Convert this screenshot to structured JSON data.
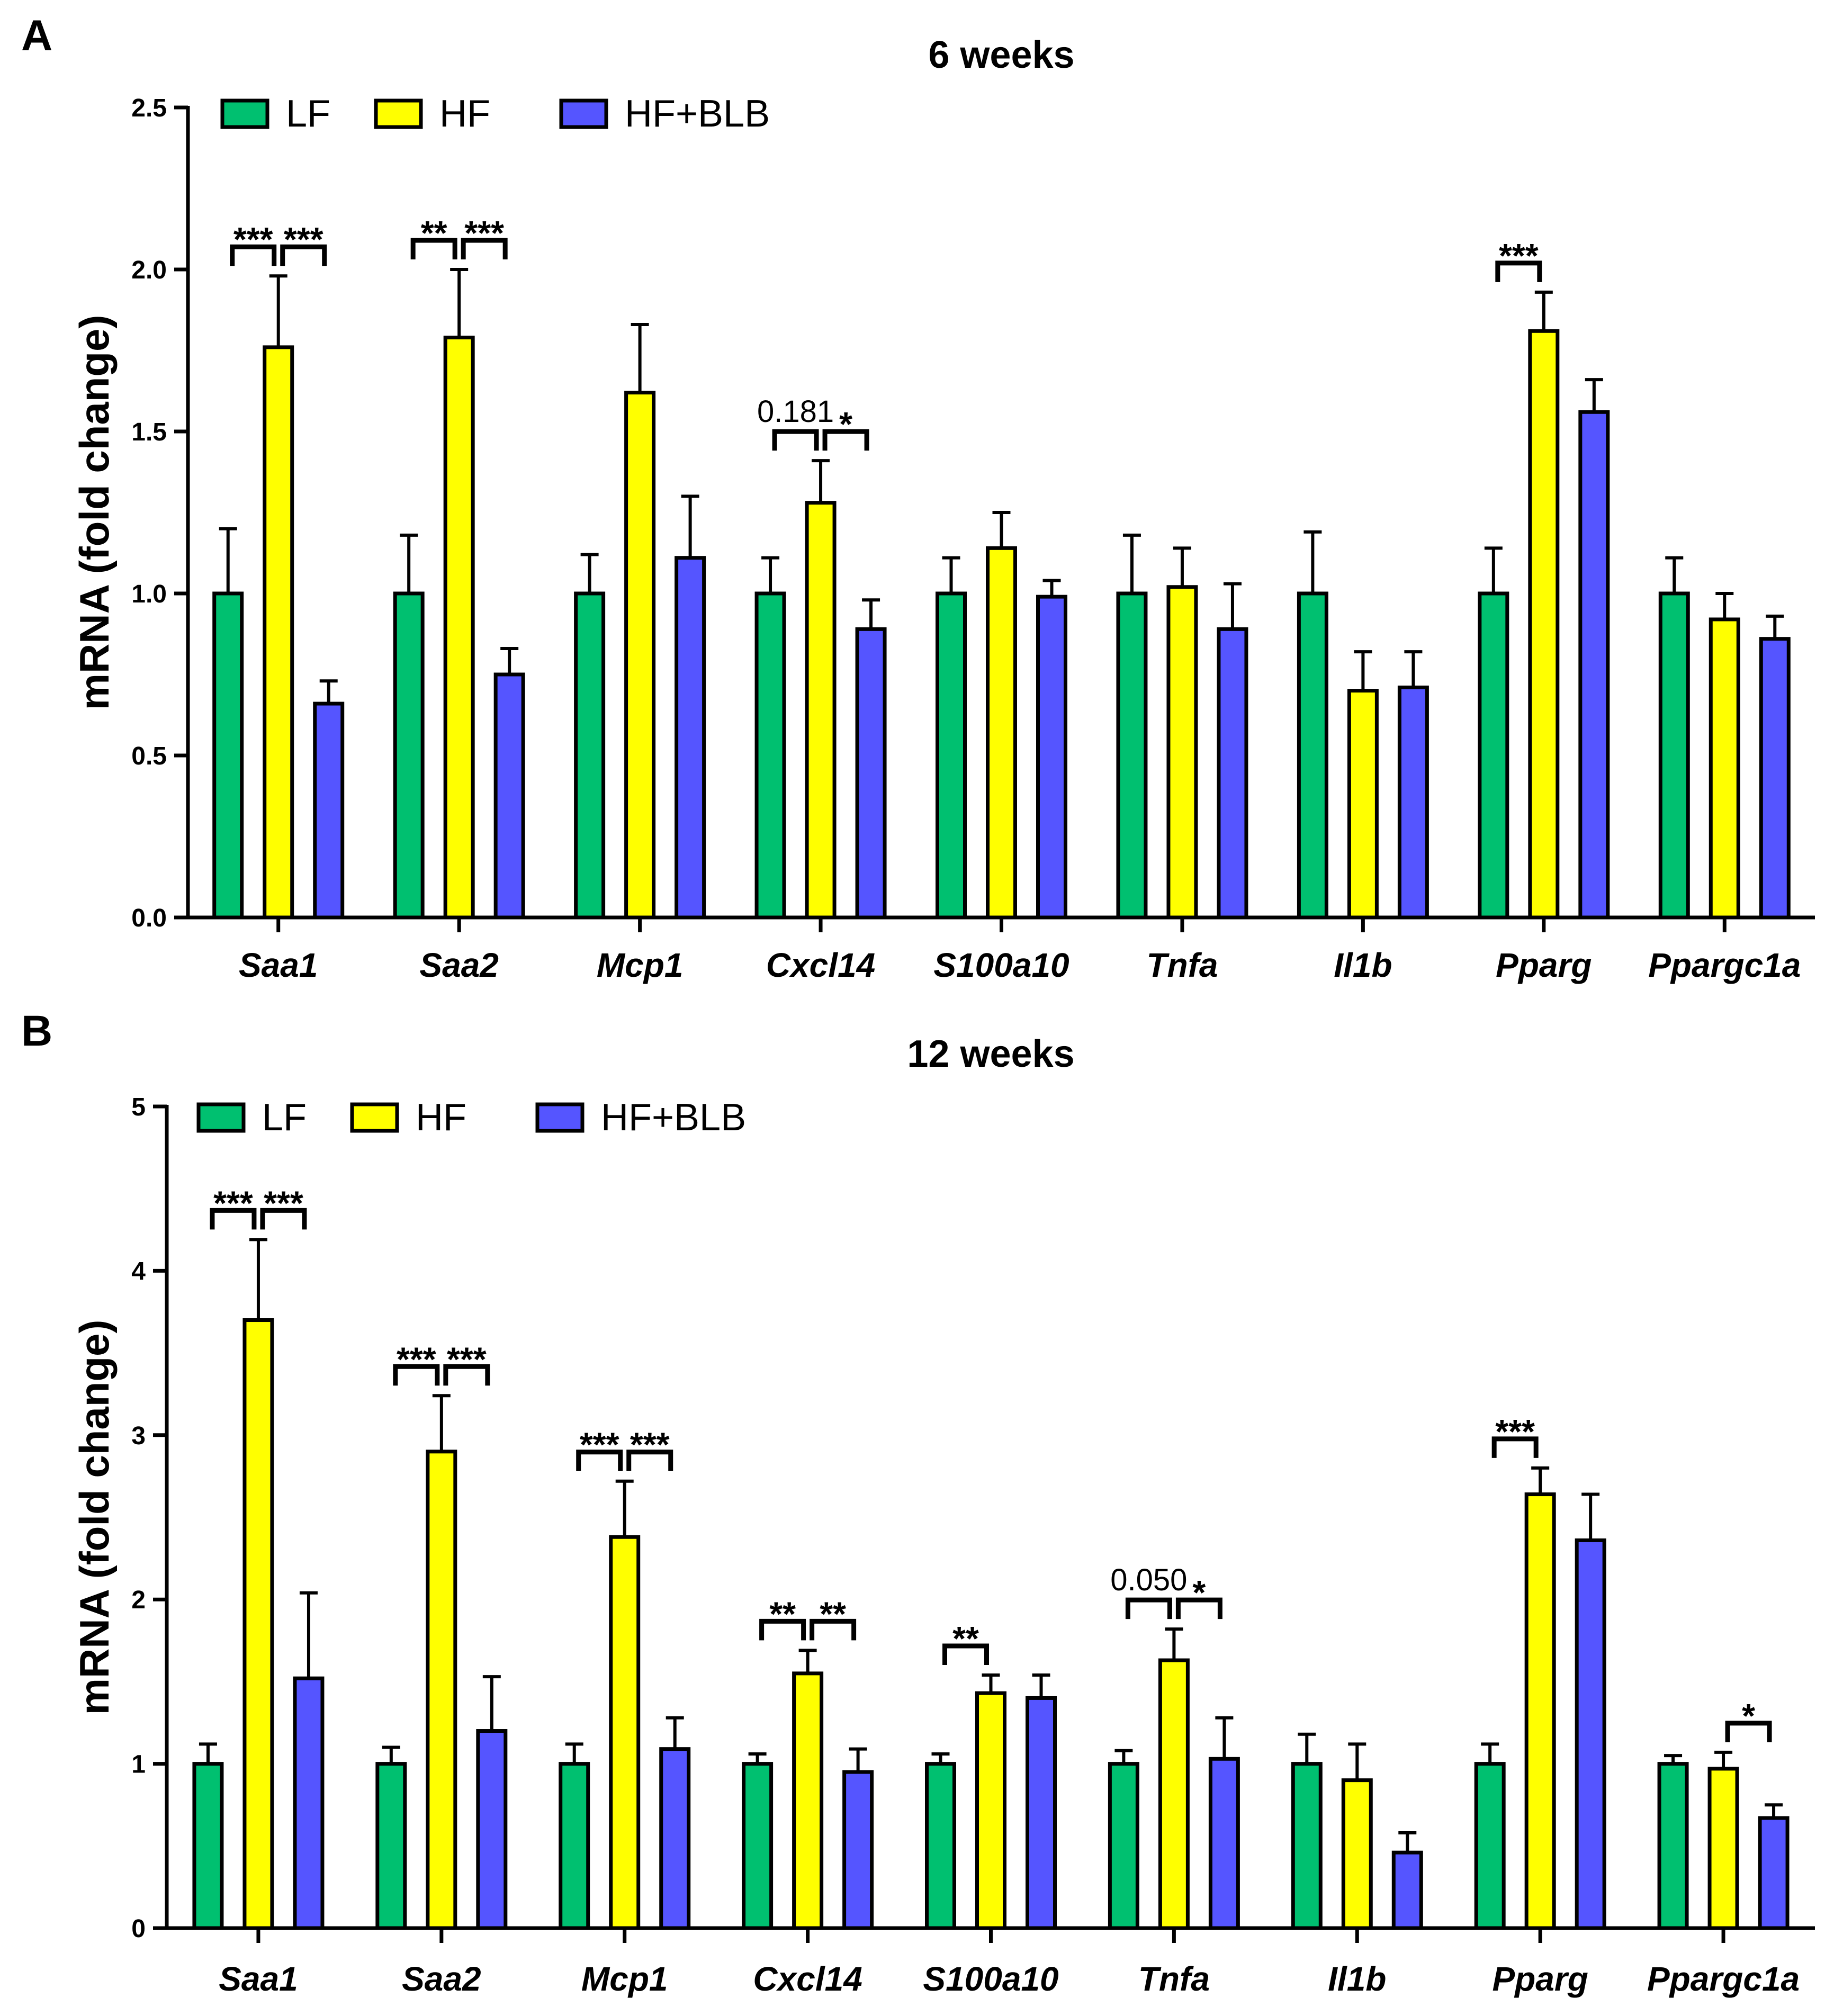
{
  "chart_data": [
    {
      "panel": "A",
      "type": "bar",
      "title": "6 weeks",
      "ylabel": "mRNA (fold change)",
      "ylim": [
        0,
        2.5
      ],
      "yticks": [
        "0.0",
        "0.5",
        "1.0",
        "1.5",
        "2.0",
        "2.5"
      ],
      "categories": [
        "Saa1",
        "Saa2",
        "Mcp1",
        "Cxcl14",
        "S100a10",
        "Tnfa",
        "Il1b",
        "Pparg",
        "Ppargc1a"
      ],
      "legend_position": "top-left",
      "series": [
        {
          "name": "LF",
          "color": "#00c070",
          "values": [
            1.0,
            1.0,
            1.0,
            1.0,
            1.0,
            1.0,
            1.0,
            1.0,
            1.0
          ],
          "errors": [
            0.2,
            0.18,
            0.12,
            0.11,
            0.11,
            0.18,
            0.19,
            0.14,
            0.11
          ]
        },
        {
          "name": "HF",
          "color": "#ffff00",
          "values": [
            1.76,
            1.79,
            1.62,
            1.28,
            1.14,
            1.02,
            0.7,
            1.81,
            0.92
          ],
          "errors": [
            0.22,
            0.21,
            0.21,
            0.13,
            0.11,
            0.12,
            0.12,
            0.12,
            0.08
          ]
        },
        {
          "name": "HF+BLB",
          "color": "#5555ff",
          "values": [
            0.66,
            0.75,
            1.11,
            0.89,
            0.99,
            0.89,
            0.71,
            1.56,
            0.86
          ],
          "errors": [
            0.07,
            0.08,
            0.19,
            0.09,
            0.05,
            0.14,
            0.11,
            0.1,
            0.07
          ]
        }
      ],
      "annotations": [
        {
          "category": 0,
          "from": 0,
          "to": 1,
          "label": "***"
        },
        {
          "category": 0,
          "from": 1,
          "to": 2,
          "label": "***"
        },
        {
          "category": 1,
          "from": 0,
          "to": 1,
          "label": "**"
        },
        {
          "category": 1,
          "from": 1,
          "to": 2,
          "label": "***"
        },
        {
          "category": 3,
          "from": 0,
          "to": 1,
          "label": "0.181"
        },
        {
          "category": 3,
          "from": 1,
          "to": 2,
          "label": "*"
        },
        {
          "category": 7,
          "from": 0,
          "to": 1,
          "label": "***"
        }
      ]
    },
    {
      "panel": "B",
      "type": "bar",
      "title": "12 weeks",
      "ylabel": "mRNA (fold change)",
      "ylim": [
        0,
        5
      ],
      "yticks": [
        "0",
        "1",
        "2",
        "3",
        "4",
        "5"
      ],
      "categories": [
        "Saa1",
        "Saa2",
        "Mcp1",
        "Cxcl14",
        "S100a10",
        "Tnfa",
        "Il1b",
        "Pparg",
        "Ppargc1a"
      ],
      "legend_position": "top-left",
      "series": [
        {
          "name": "LF",
          "color": "#00c070",
          "values": [
            1.0,
            1.0,
            1.0,
            1.0,
            1.0,
            1.0,
            1.0,
            1.0,
            1.0
          ],
          "errors": [
            0.12,
            0.1,
            0.12,
            0.06,
            0.06,
            0.08,
            0.18,
            0.12,
            0.05
          ]
        },
        {
          "name": "HF",
          "color": "#ffff00",
          "values": [
            3.7,
            2.9,
            2.38,
            1.55,
            1.43,
            1.63,
            0.9,
            2.64,
            0.97
          ],
          "errors": [
            0.49,
            0.34,
            0.34,
            0.14,
            0.11,
            0.19,
            0.22,
            0.16,
            0.1
          ]
        },
        {
          "name": "HF+BLB",
          "color": "#5555ff",
          "values": [
            1.52,
            1.2,
            1.09,
            0.95,
            1.4,
            1.03,
            0.46,
            2.36,
            0.67
          ],
          "errors": [
            0.52,
            0.33,
            0.19,
            0.14,
            0.14,
            0.25,
            0.12,
            0.28,
            0.08
          ]
        }
      ],
      "annotations": [
        {
          "category": 0,
          "from": 0,
          "to": 1,
          "label": "***"
        },
        {
          "category": 0,
          "from": 1,
          "to": 2,
          "label": "***"
        },
        {
          "category": 1,
          "from": 0,
          "to": 1,
          "label": "***"
        },
        {
          "category": 1,
          "from": 1,
          "to": 2,
          "label": "***"
        },
        {
          "category": 2,
          "from": 0,
          "to": 1,
          "label": "***"
        },
        {
          "category": 2,
          "from": 1,
          "to": 2,
          "label": "***"
        },
        {
          "category": 3,
          "from": 0,
          "to": 1,
          "label": "**"
        },
        {
          "category": 3,
          "from": 1,
          "to": 2,
          "label": "**"
        },
        {
          "category": 4,
          "from": 0,
          "to": 1,
          "label": "**"
        },
        {
          "category": 5,
          "from": 0,
          "to": 1,
          "label": "0.050"
        },
        {
          "category": 5,
          "from": 1,
          "to": 2,
          "label": "*"
        },
        {
          "category": 7,
          "from": 0,
          "to": 1,
          "label": "***"
        },
        {
          "category": 8,
          "from": 1,
          "to": 2,
          "label": "*"
        }
      ]
    }
  ]
}
